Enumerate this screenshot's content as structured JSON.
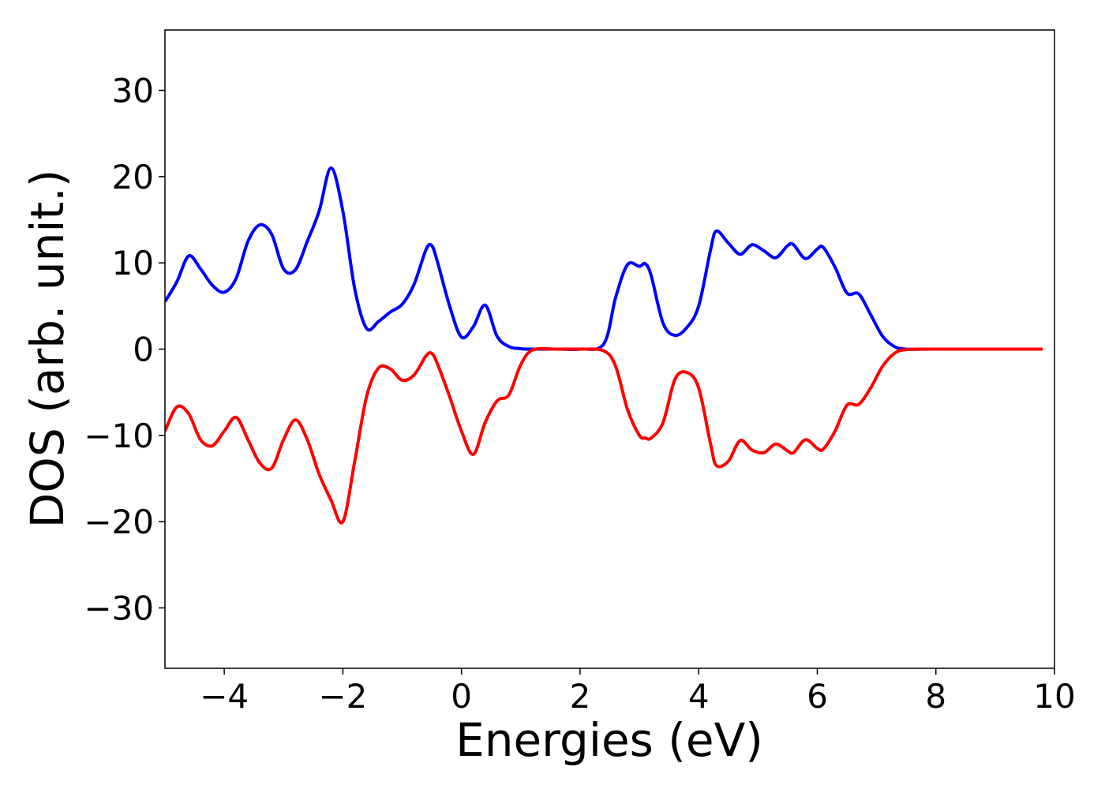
{
  "chart_data": {
    "type": "line",
    "xlabel": "Energies (eV)",
    "ylabel": "DOS (arb. unit.)",
    "xlim": [
      -5,
      10
    ],
    "ylim": [
      -37,
      37
    ],
    "xticks": [
      {
        "value": -4,
        "label": "−4"
      },
      {
        "value": -2,
        "label": "−2"
      },
      0,
      2,
      4,
      6,
      8,
      10
    ],
    "yticks": [
      {
        "value": -30,
        "label": "−30"
      },
      {
        "value": -20,
        "label": "−20"
      },
      {
        "value": -10,
        "label": "−10"
      },
      0,
      10,
      20,
      30
    ],
    "grid": false,
    "x": [
      -5,
      -4.8,
      -4.6,
      -4.4,
      -4.2,
      -4,
      -3.8,
      -3.6,
      -3.4,
      -3.2,
      -3,
      -2.8,
      -2.6,
      -2.4,
      -2.2,
      -2,
      -1.8,
      -1.6,
      -1.4,
      -1.2,
      -1,
      -0.8,
      -0.6,
      -0.5,
      -0.4,
      -0.2,
      0,
      0.2,
      0.4,
      0.6,
      0.8,
      1,
      1.2,
      1.6,
      2,
      2.4,
      2.6,
      2.8,
      3,
      3.1,
      3.2,
      3.4,
      3.6,
      3.8,
      4,
      4.2,
      4.3,
      4.5,
      4.7,
      4.9,
      5.1,
      5.3,
      5.5,
      5.6,
      5.8,
      6,
      6.1,
      6.3,
      6.5,
      6.7,
      6.9,
      7.1,
      7.3,
      7.5,
      8,
      9,
      9.8
    ],
    "series": [
      {
        "color": "#0000ff",
        "values": [
          5.5,
          7.8,
          10.8,
          9.3,
          7.4,
          6.6,
          8.2,
          12.5,
          14.4,
          13.3,
          9.3,
          9.2,
          12.5,
          16,
          21,
          16,
          7,
          2.4,
          3.2,
          4.3,
          5.2,
          7.5,
          11.5,
          12,
          10,
          5,
          1.4,
          2.6,
          5.1,
          1.5,
          0.3,
          0.05,
          0,
          0,
          0,
          0.6,
          6,
          9.8,
          9.6,
          9.9,
          8.5,
          3,
          1.6,
          2.5,
          5,
          11.5,
          13.7,
          12.3,
          11,
          12.1,
          11.4,
          10.6,
          12,
          12.1,
          10.5,
          11.6,
          11.8,
          9.5,
          6.5,
          6.4,
          4,
          1.5,
          0.3,
          0,
          0,
          0,
          0
        ]
      },
      {
        "color": "#ff0000",
        "values": [
          -9.5,
          -6.7,
          -7.5,
          -10.5,
          -11.2,
          -9.5,
          -7.9,
          -10.5,
          -13.2,
          -13.8,
          -10.5,
          -8.2,
          -10.5,
          -14.5,
          -17.5,
          -20,
          -13,
          -5.5,
          -2.2,
          -2.3,
          -3.6,
          -3,
          -0.8,
          -0.5,
          -1.8,
          -5.5,
          -9.5,
          -12.2,
          -8.5,
          -6,
          -5.3,
          -1.8,
          -0.1,
          0,
          0,
          -0.2,
          -2,
          -7,
          -10,
          -10.3,
          -10.3,
          -8.5,
          -3.5,
          -2.7,
          -4.5,
          -11,
          -13.5,
          -13,
          -10.6,
          -11.7,
          -12,
          -11,
          -11.8,
          -12,
          -10.5,
          -11.5,
          -11.6,
          -9.5,
          -6.5,
          -6.4,
          -4.5,
          -2,
          -0.5,
          -0.05,
          0,
          0,
          0
        ]
      }
    ]
  }
}
